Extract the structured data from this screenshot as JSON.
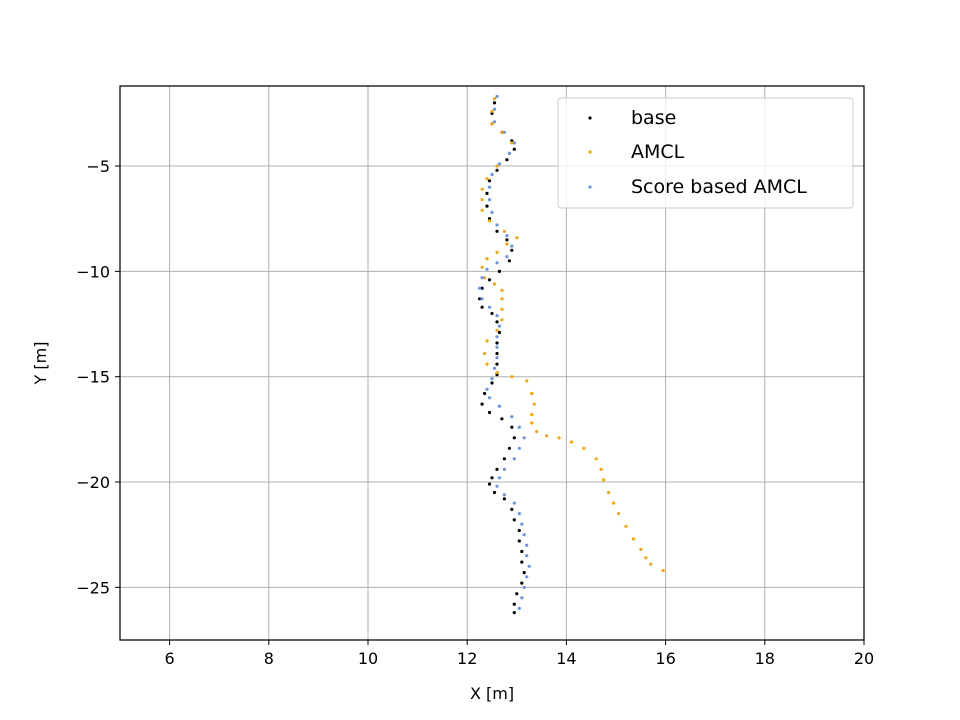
{
  "chart_data": {
    "type": "scatter",
    "xlabel": "X [m]",
    "ylabel": "Y [m]",
    "xlim": [
      5,
      20
    ],
    "ylim": [
      -27.5,
      -1.2
    ],
    "xticks": [
      6,
      8,
      10,
      12,
      14,
      16,
      18,
      20
    ],
    "yticks": [
      -5,
      -10,
      -15,
      -20,
      -25
    ],
    "grid": true,
    "legend_position": "top-right",
    "series": [
      {
        "name": "base",
        "color": "#000000",
        "points": [
          [
            12.55,
            -2.0
          ],
          [
            12.5,
            -2.5
          ],
          [
            12.5,
            -3.0
          ],
          [
            12.7,
            -3.4
          ],
          [
            12.9,
            -3.8
          ],
          [
            12.95,
            -4.2
          ],
          [
            12.8,
            -4.7
          ],
          [
            12.6,
            -5.2
          ],
          [
            12.45,
            -5.7
          ],
          [
            12.4,
            -6.3
          ],
          [
            12.4,
            -6.9
          ],
          [
            12.45,
            -7.5
          ],
          [
            12.6,
            -8.1
          ],
          [
            12.8,
            -8.5
          ],
          [
            12.9,
            -9.0
          ],
          [
            12.85,
            -9.5
          ],
          [
            12.65,
            -10.0
          ],
          [
            12.45,
            -10.4
          ],
          [
            12.3,
            -10.8
          ],
          [
            12.25,
            -11.3
          ],
          [
            12.3,
            -11.7
          ],
          [
            12.5,
            -12.0
          ],
          [
            12.6,
            -12.4
          ],
          [
            12.65,
            -12.9
          ],
          [
            12.6,
            -13.4
          ],
          [
            12.6,
            -13.9
          ],
          [
            12.6,
            -14.4
          ],
          [
            12.6,
            -14.9
          ],
          [
            12.5,
            -15.3
          ],
          [
            12.35,
            -15.8
          ],
          [
            12.3,
            -16.3
          ],
          [
            12.45,
            -16.7
          ],
          [
            12.7,
            -17.0
          ],
          [
            12.9,
            -17.4
          ],
          [
            12.95,
            -17.9
          ],
          [
            12.85,
            -18.4
          ],
          [
            12.75,
            -18.9
          ],
          [
            12.6,
            -19.4
          ],
          [
            12.5,
            -19.8
          ],
          [
            12.45,
            -20.1
          ],
          [
            12.55,
            -20.5
          ],
          [
            12.75,
            -20.8
          ],
          [
            12.9,
            -21.3
          ],
          [
            12.95,
            -21.8
          ],
          [
            13.05,
            -22.3
          ],
          [
            13.05,
            -22.8
          ],
          [
            13.1,
            -23.3
          ],
          [
            13.1,
            -23.8
          ],
          [
            13.15,
            -24.3
          ],
          [
            13.1,
            -24.8
          ],
          [
            13.0,
            -25.3
          ],
          [
            12.95,
            -25.8
          ],
          [
            12.95,
            -26.2
          ]
        ]
      },
      {
        "name": "AMCL",
        "color": "#ffa500",
        "points": [
          [
            12.55,
            -1.8
          ],
          [
            12.5,
            -2.4
          ],
          [
            12.5,
            -3.0
          ],
          [
            12.7,
            -3.4
          ],
          [
            12.9,
            -3.9
          ],
          [
            12.85,
            -4.4
          ],
          [
            12.6,
            -5.0
          ],
          [
            12.4,
            -5.6
          ],
          [
            12.3,
            -6.1
          ],
          [
            12.3,
            -6.6
          ],
          [
            12.3,
            -7.1
          ],
          [
            12.45,
            -7.6
          ],
          [
            12.75,
            -8.1
          ],
          [
            13.0,
            -8.4
          ],
          [
            12.8,
            -8.7
          ],
          [
            12.6,
            -9.1
          ],
          [
            12.4,
            -9.4
          ],
          [
            12.3,
            -9.8
          ],
          [
            12.35,
            -10.3
          ],
          [
            12.55,
            -10.6
          ],
          [
            12.7,
            -10.9
          ],
          [
            12.7,
            -11.3
          ],
          [
            12.7,
            -11.8
          ],
          [
            12.7,
            -12.3
          ],
          [
            12.6,
            -12.8
          ],
          [
            12.4,
            -13.3
          ],
          [
            12.35,
            -13.9
          ],
          [
            12.4,
            -14.4
          ],
          [
            12.6,
            -14.8
          ],
          [
            12.9,
            -15.0
          ],
          [
            13.2,
            -15.2
          ],
          [
            13.3,
            -15.8
          ],
          [
            13.35,
            -16.3
          ],
          [
            13.3,
            -16.8
          ],
          [
            13.3,
            -17.2
          ],
          [
            13.4,
            -17.6
          ],
          [
            13.6,
            -17.8
          ],
          [
            13.85,
            -17.9
          ],
          [
            14.1,
            -18.1
          ],
          [
            14.35,
            -18.4
          ],
          [
            14.6,
            -18.9
          ],
          [
            14.7,
            -19.4
          ],
          [
            14.75,
            -19.9
          ],
          [
            14.85,
            -20.5
          ],
          [
            14.95,
            -21.0
          ],
          [
            15.05,
            -21.5
          ],
          [
            15.2,
            -22.1
          ],
          [
            15.35,
            -22.7
          ],
          [
            15.5,
            -23.2
          ],
          [
            15.6,
            -23.6
          ],
          [
            15.7,
            -23.9
          ],
          [
            15.95,
            -24.2
          ]
        ]
      },
      {
        "name": "Score based AMCL",
        "color": "#6495ed",
        "points": [
          [
            12.6,
            -1.7
          ],
          [
            12.55,
            -2.3
          ],
          [
            12.55,
            -2.9
          ],
          [
            12.75,
            -3.4
          ],
          [
            12.95,
            -3.9
          ],
          [
            12.85,
            -4.4
          ],
          [
            12.65,
            -4.9
          ],
          [
            12.5,
            -5.4
          ],
          [
            12.45,
            -6.0
          ],
          [
            12.45,
            -6.6
          ],
          [
            12.5,
            -7.2
          ],
          [
            12.6,
            -7.8
          ],
          [
            12.8,
            -8.3
          ],
          [
            12.9,
            -8.8
          ],
          [
            12.8,
            -9.3
          ],
          [
            12.6,
            -9.6
          ],
          [
            12.4,
            -9.9
          ],
          [
            12.3,
            -10.3
          ],
          [
            12.25,
            -10.8
          ],
          [
            12.3,
            -11.3
          ],
          [
            12.45,
            -11.7
          ],
          [
            12.6,
            -12.1
          ],
          [
            12.65,
            -12.6
          ],
          [
            12.6,
            -13.1
          ],
          [
            12.6,
            -13.6
          ],
          [
            12.6,
            -14.1
          ],
          [
            12.55,
            -14.6
          ],
          [
            12.5,
            -15.1
          ],
          [
            12.4,
            -15.6
          ],
          [
            12.45,
            -16.0
          ],
          [
            12.65,
            -16.4
          ],
          [
            12.9,
            -16.9
          ],
          [
            13.05,
            -17.4
          ],
          [
            13.15,
            -17.9
          ],
          [
            13.05,
            -18.4
          ],
          [
            12.95,
            -18.9
          ],
          [
            12.75,
            -19.4
          ],
          [
            12.65,
            -19.8
          ],
          [
            12.6,
            -20.2
          ],
          [
            12.75,
            -20.6
          ],
          [
            12.95,
            -21.0
          ],
          [
            13.05,
            -21.5
          ],
          [
            13.1,
            -22.0
          ],
          [
            13.15,
            -22.5
          ],
          [
            13.2,
            -23.0
          ],
          [
            13.2,
            -23.5
          ],
          [
            13.25,
            -24.0
          ],
          [
            13.2,
            -24.5
          ],
          [
            13.15,
            -25.0
          ],
          [
            13.1,
            -25.5
          ],
          [
            13.05,
            -26.0
          ]
        ]
      }
    ]
  }
}
